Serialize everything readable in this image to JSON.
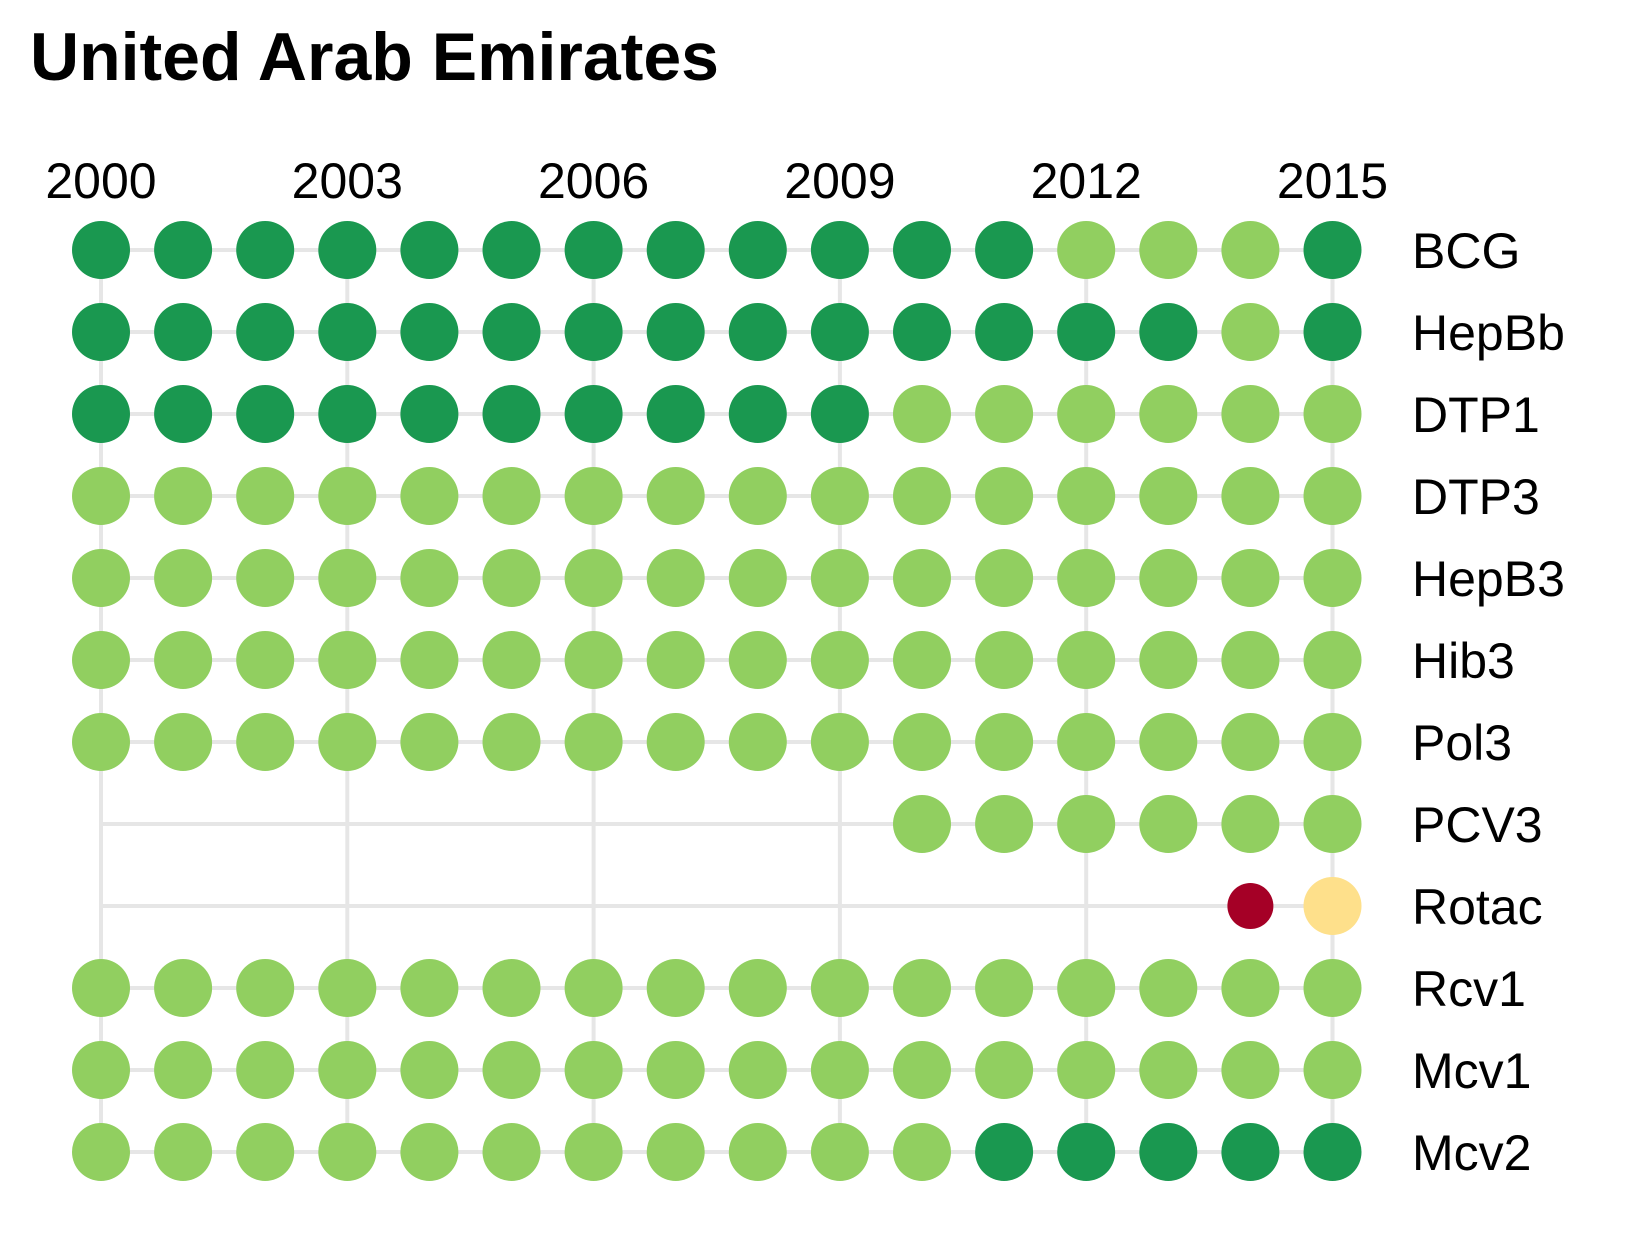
{
  "title": "United Arab Emirates",
  "colors": {
    "high": "#1a9850",
    "good": "#91cf60",
    "low": "#fee08b",
    "very_low": "#a50026",
    "grid": "#e6e6e6"
  },
  "chart_data": {
    "type": "dot-matrix",
    "title": "United Arab Emirates",
    "x": [
      2000,
      2001,
      2002,
      2003,
      2004,
      2005,
      2006,
      2007,
      2008,
      2009,
      2010,
      2011,
      2012,
      2013,
      2014,
      2015
    ],
    "x_ticks": [
      "2000",
      "2003",
      "2006",
      "2009",
      "2012",
      "2015"
    ],
    "legend": "none",
    "rows": [
      {
        "name": "BCG",
        "levels": [
          "high",
          "high",
          "high",
          "high",
          "high",
          "high",
          "high",
          "high",
          "high",
          "high",
          "high",
          "high",
          "good",
          "good",
          "good",
          "high"
        ]
      },
      {
        "name": "HepBb",
        "levels": [
          "high",
          "high",
          "high",
          "high",
          "high",
          "high",
          "high",
          "high",
          "high",
          "high",
          "high",
          "high",
          "high",
          "high",
          "good",
          "high"
        ]
      },
      {
        "name": "DTP1",
        "levels": [
          "high",
          "high",
          "high",
          "high",
          "high",
          "high",
          "high",
          "high",
          "high",
          "high",
          "good",
          "good",
          "good",
          "good",
          "good",
          "good"
        ]
      },
      {
        "name": "DTP3",
        "levels": [
          "good",
          "good",
          "good",
          "good",
          "good",
          "good",
          "good",
          "good",
          "good",
          "good",
          "good",
          "good",
          "good",
          "good",
          "good",
          "good"
        ]
      },
      {
        "name": "HepB3",
        "levels": [
          "good",
          "good",
          "good",
          "good",
          "good",
          "good",
          "good",
          "good",
          "good",
          "good",
          "good",
          "good",
          "good",
          "good",
          "good",
          "good"
        ]
      },
      {
        "name": "Hib3",
        "levels": [
          "good",
          "good",
          "good",
          "good",
          "good",
          "good",
          "good",
          "good",
          "good",
          "good",
          "good",
          "good",
          "good",
          "good",
          "good",
          "good"
        ]
      },
      {
        "name": "Pol3",
        "levels": [
          "good",
          "good",
          "good",
          "good",
          "good",
          "good",
          "good",
          "good",
          "good",
          "good",
          "good",
          "good",
          "good",
          "good",
          "good",
          "good"
        ]
      },
      {
        "name": "PCV3",
        "levels": [
          null,
          null,
          null,
          null,
          null,
          null,
          null,
          null,
          null,
          null,
          "good",
          "good",
          "good",
          "good",
          "good",
          "good"
        ]
      },
      {
        "name": "Rotac",
        "levels": [
          null,
          null,
          null,
          null,
          null,
          null,
          null,
          null,
          null,
          null,
          null,
          null,
          null,
          null,
          "very_low",
          "low"
        ]
      },
      {
        "name": "Rcv1",
        "levels": [
          "good",
          "good",
          "good",
          "good",
          "good",
          "good",
          "good",
          "good",
          "good",
          "good",
          "good",
          "good",
          "good",
          "good",
          "good",
          "good"
        ]
      },
      {
        "name": "Mcv1",
        "levels": [
          "good",
          "good",
          "good",
          "good",
          "good",
          "good",
          "good",
          "good",
          "good",
          "good",
          "good",
          "good",
          "good",
          "good",
          "good",
          "good"
        ]
      },
      {
        "name": "Mcv2",
        "levels": [
          "good",
          "good",
          "good",
          "good",
          "good",
          "good",
          "good",
          "good",
          "good",
          "good",
          "good",
          "high",
          "high",
          "high",
          "high",
          "high"
        ]
      }
    ]
  }
}
